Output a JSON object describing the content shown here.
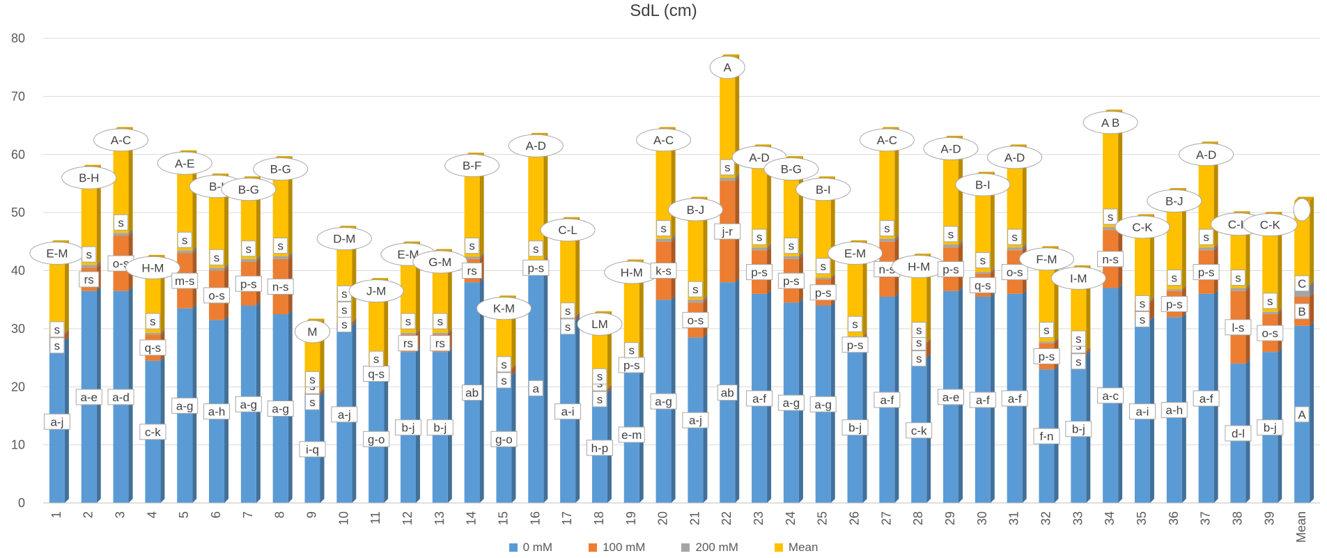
{
  "chart_data": {
    "type": "bar",
    "subtype": "stacked-3d",
    "title": "SdL (cm)",
    "xlabel": "",
    "ylabel": "",
    "ylim": [
      0,
      80
    ],
    "yticks": [
      0,
      10,
      20,
      30,
      40,
      50,
      60,
      70,
      80
    ],
    "grid": true,
    "legend_position": "bottom",
    "colors": {
      "0 mM": "#5b9bd5",
      "100 mM": "#ed7d31",
      "200 mM": "#a5a5a5",
      "Mean": "#ffc000"
    },
    "categories": [
      "1",
      "2",
      "3",
      "4",
      "5",
      "6",
      "7",
      "8",
      "9",
      "10",
      "11",
      "12",
      "13",
      "14",
      "15",
      "16",
      "17",
      "18",
      "19",
      "20",
      "21",
      "22",
      "23",
      "24",
      "25",
      "26",
      "27",
      "28",
      "29",
      "30",
      "31",
      "32",
      "33",
      "34",
      "35",
      "36",
      "37",
      "38",
      "39",
      "Mean"
    ],
    "series": [
      {
        "name": "0 mM",
        "values": [
          28,
          36.5,
          36.5,
          24.5,
          33.5,
          31.5,
          34,
          32.5,
          18.5,
          30.5,
          22,
          26,
          26,
          38,
          22,
          39.5,
          31.5,
          19,
          23.5,
          35,
          28.5,
          38,
          36,
          34.5,
          34,
          26,
          35.5,
          25,
          36.5,
          35.5,
          36,
          23,
          25.5,
          37,
          31.5,
          32,
          36,
          24,
          26,
          30.5
        ]
      },
      {
        "name": "100 mM",
        "values": [
          1,
          4,
          9.5,
          4.5,
          9.5,
          8.5,
          7.5,
          9.5,
          0.5,
          0.5,
          0.5,
          3,
          3,
          4,
          1,
          2,
          0.5,
          0.5,
          0.5,
          10,
          6,
          17.5,
          7.5,
          7.5,
          4.5,
          2.5,
          9.5,
          2.5,
          7.5,
          4,
          7.5,
          4.5,
          0.5,
          10,
          3,
          4.5,
          7.5,
          12.5,
          6.5,
          5
        ]
      },
      {
        "name": "200 mM",
        "values": [
          0.3,
          0.5,
          0.5,
          0.3,
          0.5,
          0.5,
          0.5,
          0.5,
          0.2,
          0.2,
          0.2,
          0.3,
          0.3,
          0.4,
          0.2,
          0.3,
          0.2,
          0.2,
          0.2,
          0.5,
          0.5,
          0.5,
          0.5,
          0.5,
          0.3,
          0.2,
          0.5,
          0.2,
          0.5,
          0.3,
          0.5,
          0.3,
          0.2,
          0.5,
          0.3,
          0.3,
          0.5,
          0.5,
          0.4,
          2
        ]
      },
      {
        "name": "Mean",
        "values": [
          15.2,
          16.5,
          17.5,
          12.7,
          16.5,
          15.5,
          13.5,
          16.5,
          11.8,
          15.8,
          15.3,
          15,
          13.7,
          17.2,
          11.8,
          21.2,
          16.3,
          12.6,
          17,
          18.5,
          17,
          20.5,
          17,
          16.5,
          16.7,
          15.8,
          18.5,
          14.5,
          18,
          16.5,
          17,
          15.7,
          14,
          19.5,
          14.2,
          16.7,
          17.5,
          12.5,
          16.5,
          14.5
        ]
      }
    ],
    "annotations": {
      "base": [
        "a-j",
        "a-e",
        "a-d",
        "c-k",
        "a-g",
        "a-h",
        "a-g",
        "a-g",
        "i-q",
        "a-j",
        "g-o",
        "b-j",
        "b-j",
        "ab",
        "g-o",
        "a",
        "a-i",
        "h-p",
        "e-m",
        "a-g",
        "a-j",
        "ab",
        "a-f",
        "a-g",
        "a-g",
        "b-j",
        "a-f",
        "c-k",
        "a-e",
        "a-f",
        "a-f",
        "f-n",
        "b-j",
        "a-c",
        "a-i",
        "a-h",
        "a-f",
        "d-l",
        "b-j",
        "A"
      ],
      "mid": [
        [
          "s",
          "s"
        ],
        [
          "rs"
        ],
        [
          "o-s"
        ],
        [
          "q-s"
        ],
        [
          "m-s"
        ],
        [
          "o-s"
        ],
        [
          "p-s"
        ],
        [
          "n-s"
        ],
        [
          "s",
          "s"
        ],
        [
          "s"
        ],
        [
          "q-s"
        ],
        [
          "rs"
        ],
        [
          "rs"
        ],
        [
          "rs"
        ],
        [
          "s",
          "s"
        ],
        [
          "p-s"
        ],
        [
          "s",
          "s"
        ],
        [
          "s",
          "s"
        ],
        [
          "p-s"
        ],
        [
          "k-s"
        ],
        [
          "o-s"
        ],
        [
          "j-r"
        ],
        [
          "p-s"
        ],
        [
          "p-s"
        ],
        [
          "p-s"
        ],
        [
          "p-s"
        ],
        [
          "n-s"
        ],
        [
          "s",
          "s"
        ],
        [
          "p-s"
        ],
        [
          "q-s"
        ],
        [
          "o-s"
        ],
        [
          "p-s"
        ],
        [
          "s",
          "s"
        ],
        [
          "n-s"
        ],
        [
          "s",
          "s"
        ],
        [
          "p-s"
        ],
        [
          "p-s"
        ],
        [
          "l-s"
        ],
        [
          "o-s"
        ],
        [
          "B"
        ]
      ],
      "upper": [
        [],
        [
          "s"
        ],
        [
          "s"
        ],
        [
          "s"
        ],
        [
          "s"
        ],
        [
          "s"
        ],
        [
          "s"
        ],
        [
          "s"
        ],
        [
          "s"
        ],
        [
          "s",
          "s"
        ],
        [
          "s"
        ],
        [
          "s"
        ],
        [
          "s"
        ],
        [
          "s"
        ],
        [],
        [
          "s"
        ],
        [],
        [
          "s"
        ],
        [
          "s"
        ],
        [
          "s"
        ],
        [
          "s"
        ],
        [
          "s"
        ],
        [
          "s"
        ],
        [
          "s"
        ],
        [
          "s"
        ],
        [
          "s"
        ],
        [
          "s"
        ],
        [
          "s"
        ],
        [
          "s"
        ],
        [
          "s"
        ],
        [
          "s"
        ],
        [
          "s"
        ],
        [
          "s"
        ],
        [
          "s"
        ],
        [],
        [
          "s"
        ],
        [
          "s"
        ],
        [
          "s"
        ],
        [
          "s"
        ],
        [
          "C"
        ]
      ],
      "top": [
        "E-M",
        "B-H",
        "A-C",
        "H-M",
        "A-E",
        "B-I",
        "B-G",
        "B-G",
        "M",
        "D-M",
        "J-M",
        "E-M",
        "G-M",
        "B-F",
        "K-M",
        "A-D",
        "C-L",
        "LM",
        "H-M",
        "A-C",
        "B-J",
        "A",
        "A-D",
        "B-G",
        "B-I",
        "E-M",
        "A-C",
        "H-M",
        "A-D",
        "B-I",
        "A-D",
        "F-M",
        "I-M",
        "A B",
        "C-K",
        "B-J",
        "A-D",
        "C-K",
        "C-K",
        ""
      ]
    }
  }
}
